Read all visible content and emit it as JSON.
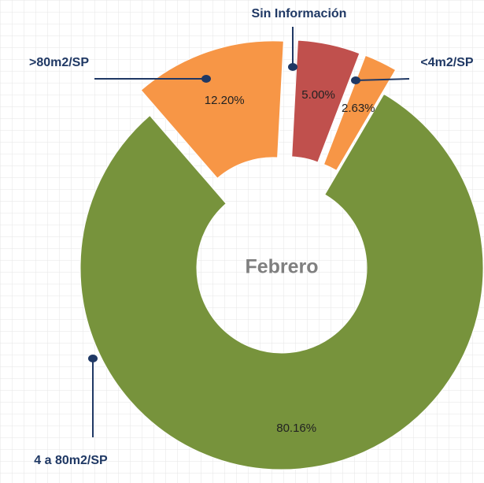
{
  "chart_data": {
    "type": "donut",
    "center_label": "Febrero",
    "categories": [
      "Sin Información",
      "<4m2/SP",
      "4 a 80m2/SP",
      ">80m2/SP"
    ],
    "values": [
      5.0,
      2.63,
      80.16,
      12.2
    ],
    "value_labels": [
      "5.00%",
      "2.63%",
      "80.16%",
      "12.20%"
    ],
    "colors": [
      "#c0504d",
      "#f79646",
      "#77933c",
      "#f79646"
    ]
  }
}
